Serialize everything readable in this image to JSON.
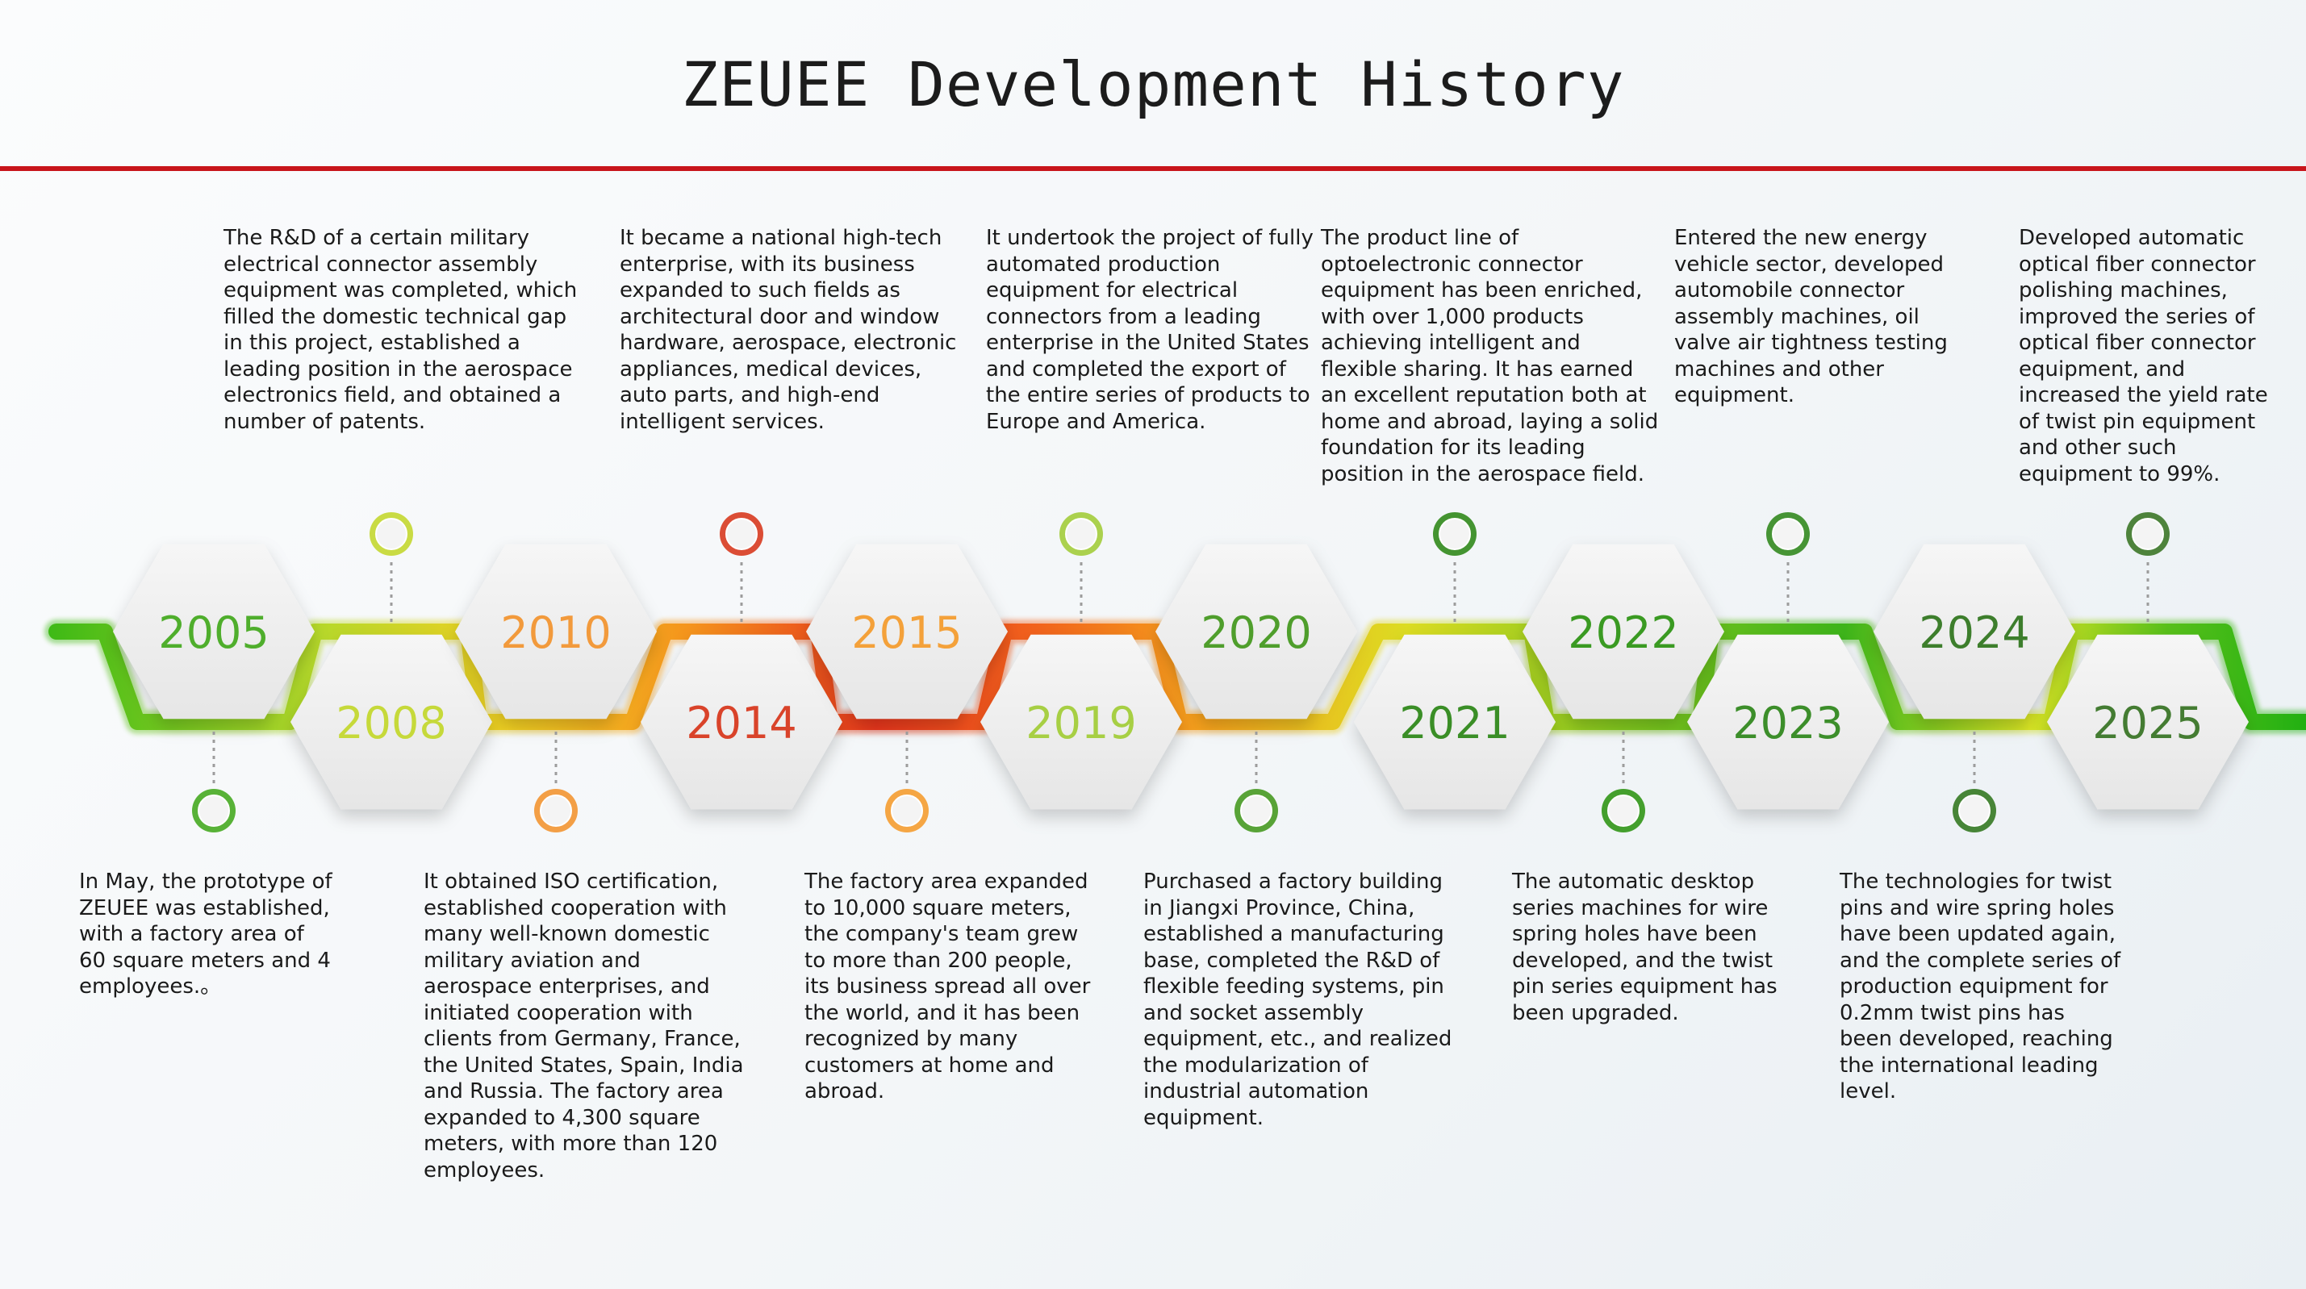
{
  "title": "ZEUEE Development History",
  "colors": {
    "title_rule": "#c8151b",
    "green": "#36b41c",
    "lime": "#c8d82c",
    "orange": "#f3961d",
    "red": "#e0311c"
  },
  "milestones": [
    {
      "year": "2005",
      "color": "#4fae2c",
      "position": "top",
      "text": "In May, the prototype of ZEUEE was established, with a factory area of 60 square meters and 4 employees.。"
    },
    {
      "year": "2008",
      "color": "#c6d93a",
      "position": "bottom",
      "text": "The R&D of a certain military electrical connector assembly equipment was completed, which filled the domestic technical gap in this project, established a leading position in the aerospace electronics field, and obtained a number of patents."
    },
    {
      "year": "2010",
      "color": "#f29a3c",
      "position": "top",
      "text": "It obtained ISO certification, established cooperation with many well-known domestic military aviation and aerospace enterprises, and initiated cooperation with clients from Germany, France, the United States, Spain, India and Russia. The factory area expanded to 4,300 square meters, with more than 120 employees."
    },
    {
      "year": "2014",
      "color": "#d9432a",
      "position": "bottom",
      "text": "It became a national high-tech enterprise, with its business expanded to such fields as architectural door and window hardware, aerospace, electronic appliances, medical devices, auto parts, and high-end intelligent services."
    },
    {
      "year": "2015",
      "color": "#f4a13a",
      "position": "top",
      "text": "The factory area expanded to 10,000 square meters, the company's team grew to more than 200 people, its business spread all over the world, and it has been recognized by many customers at home and abroad."
    },
    {
      "year": "2019",
      "color": "#a7cf44",
      "position": "bottom",
      "text": "It undertook the project of fully automated production equipment for electrical connectors from a leading enterprise in the United States and completed the export of the entire series of products to Europe and America."
    },
    {
      "year": "2020",
      "color": "#4f9e2c",
      "position": "top",
      "text": "Purchased a factory building in Jiangxi Province, China, established a manufacturing base, completed the R&D of flexible feeding systems, pin and socket assembly equipment, etc., and realized the modularization of industrial automation equipment."
    },
    {
      "year": "2021",
      "color": "#3a8e26",
      "position": "bottom",
      "text": "The product line of optoelectronic connector equipment has been enriched, with over 1,000 products achieving intelligent and flexible sharing. It has earned an excellent reputation both at home and abroad, laying a solid foundation for its leading position in the aerospace field."
    },
    {
      "year": "2022",
      "color": "#3a9a22",
      "position": "top",
      "text": "The automatic desktop series machines for wire spring holes have been developed, and the twist pin series equipment has been upgraded."
    },
    {
      "year": "2023",
      "color": "#3c8e2a",
      "position": "bottom",
      "text": "Entered the new energy vehicle sector, developed automobile connector assembly machines, oil valve air tightness testing machines and other equipment."
    },
    {
      "year": "2024",
      "color": "#3d7e2c",
      "position": "top",
      "text": "The technologies for twist pins and wire spring holes have been updated again, and the complete series of production equipment for 0.2mm twist pins has been developed, reaching the international leading level."
    },
    {
      "year": "2025",
      "color": "#447c32",
      "position": "bottom",
      "text": "Developed automatic optical fiber connector polishing machines, improved the series of optical fiber connector equipment, and increased the yield rate of twist pin equipment and other such equipment to 99%."
    }
  ]
}
